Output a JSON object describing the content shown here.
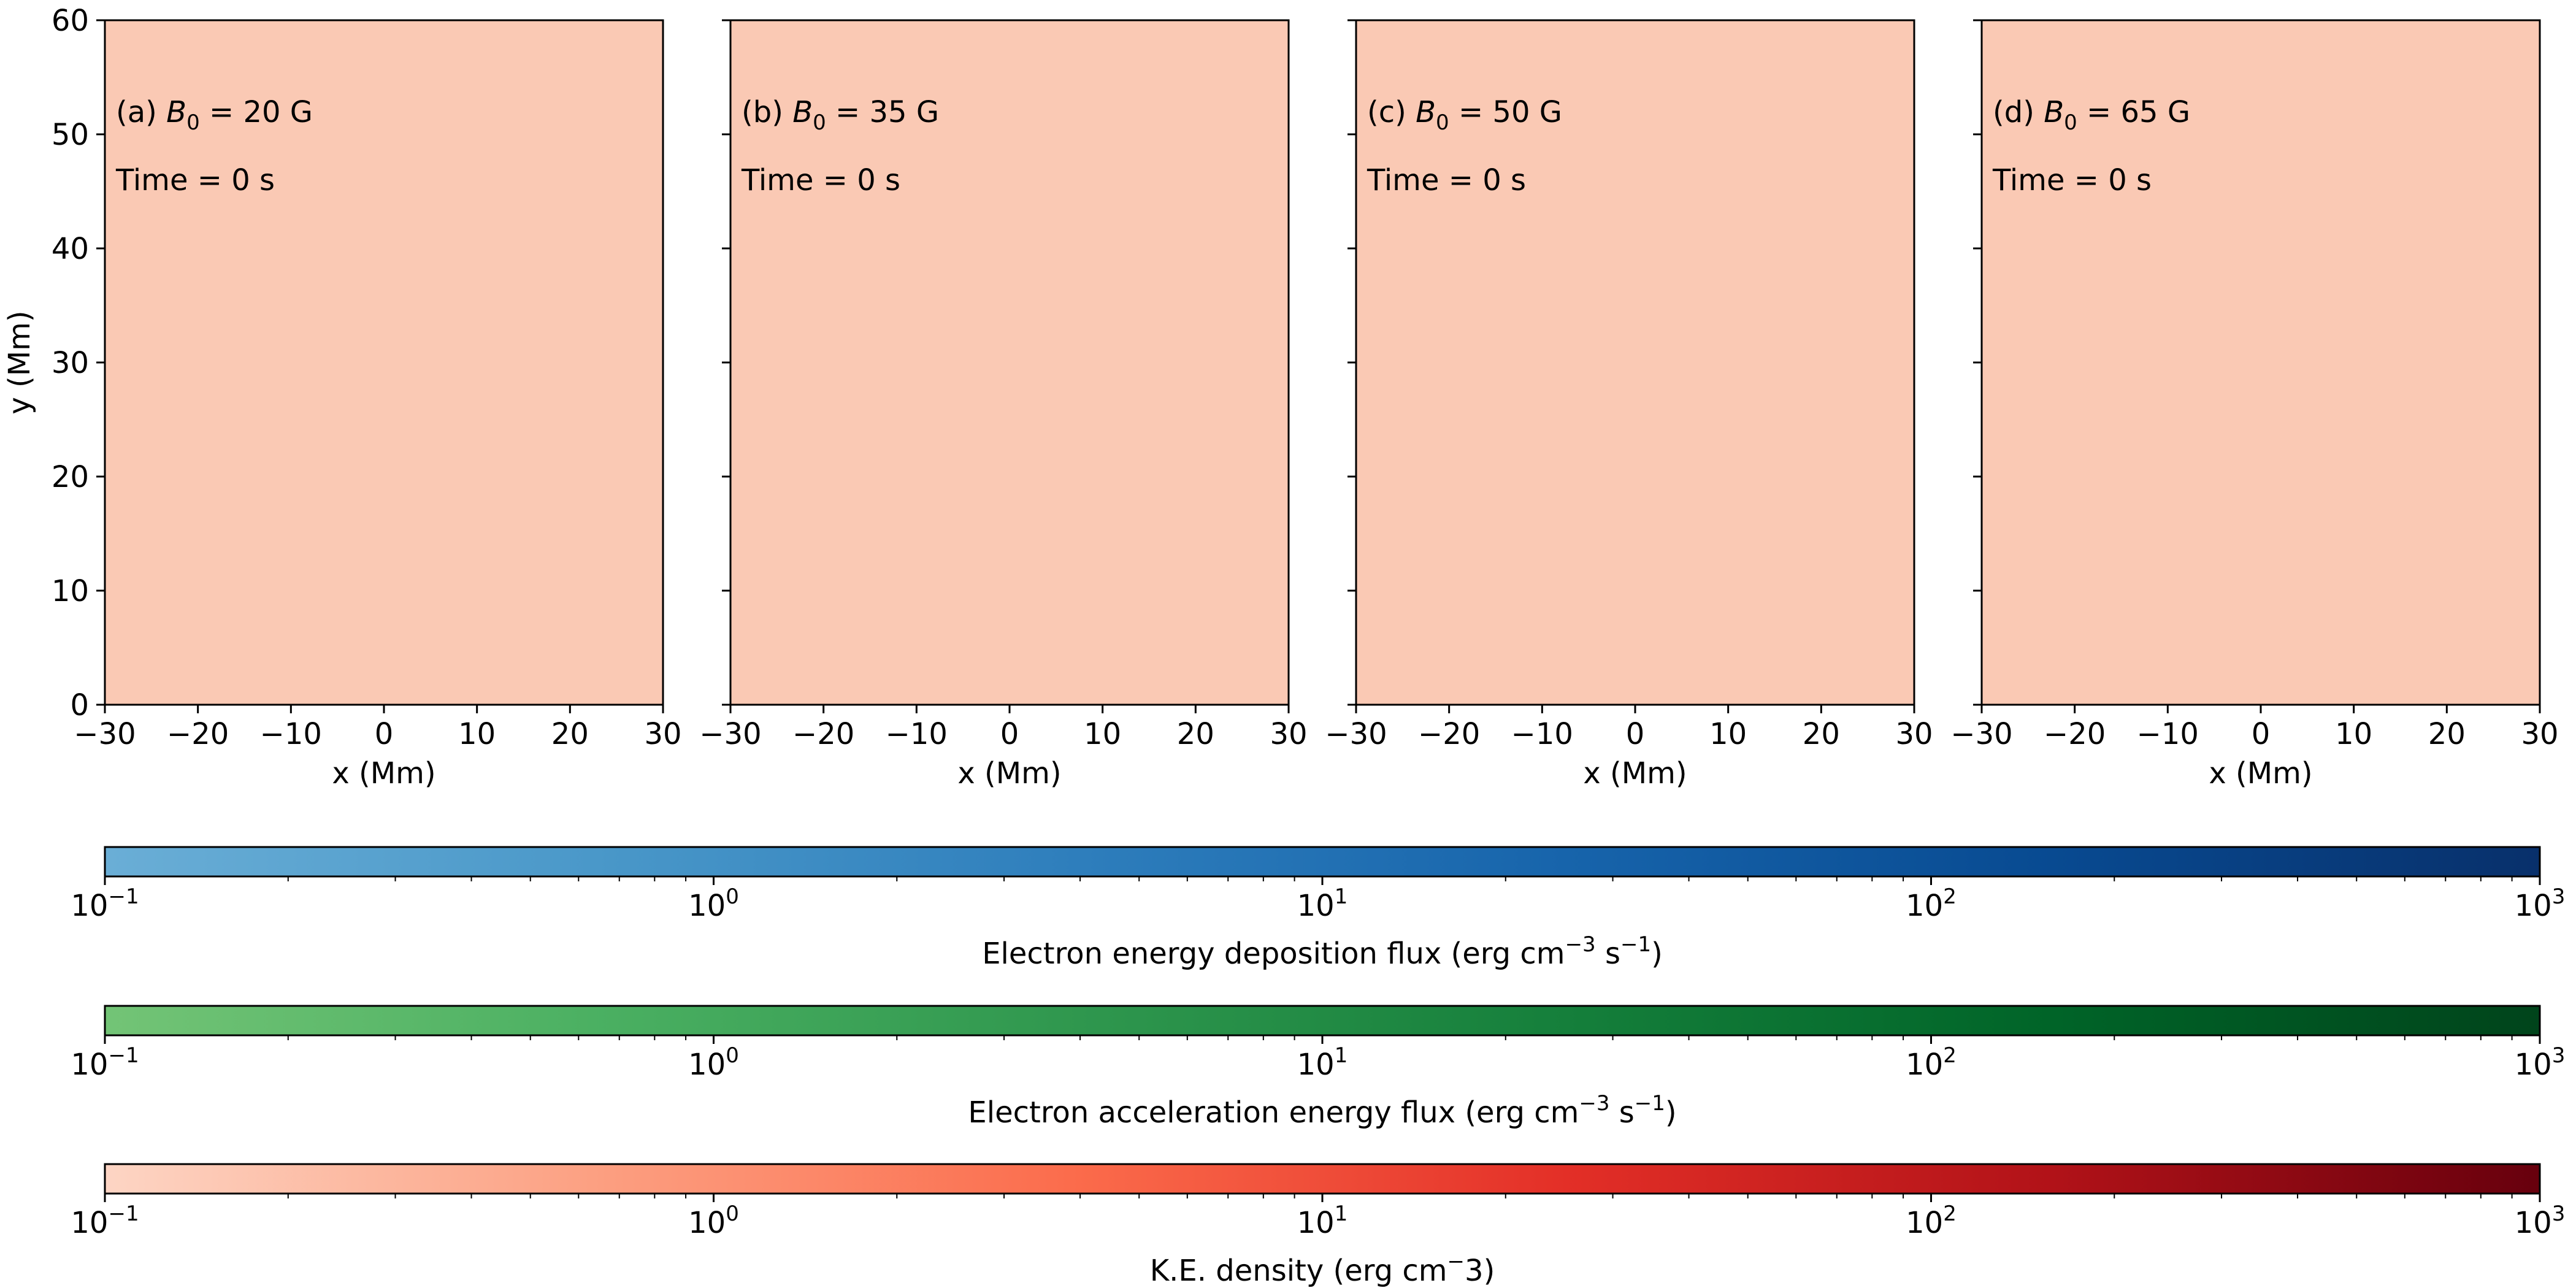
{
  "figure": {
    "colors": {
      "panel_fill": "#fac9b4",
      "axis": "#000000"
    }
  },
  "chart_data": [
    {
      "type": "heatmap",
      "panel": "a",
      "label_prefix": "(a) ",
      "label_symbol": "B",
      "label_subscript": "0",
      "label_value": " = 20 G",
      "time_label": "Time = 0 s",
      "x": [
        -30,
        -20,
        -10,
        0,
        10,
        20,
        30
      ],
      "y": [
        0,
        10,
        20,
        30,
        40,
        50,
        60
      ],
      "xlim": [
        -30,
        30
      ],
      "ylim": [
        0,
        60
      ],
      "xlabel": "x (Mm)",
      "ylabel": "y (Mm)",
      "values": "uniform K.E. density at minimum (10^-1)"
    },
    {
      "type": "heatmap",
      "panel": "b",
      "label_prefix": "(b) ",
      "label_symbol": "B",
      "label_subscript": "0",
      "label_value": " = 35 G",
      "time_label": "Time = 0 s",
      "xlim": [
        -30,
        30
      ],
      "ylim": [
        0,
        60
      ],
      "xlabel": "x (Mm)"
    },
    {
      "type": "heatmap",
      "panel": "c",
      "label_prefix": "(c) ",
      "label_symbol": "B",
      "label_subscript": "0",
      "label_value": " = 50 G",
      "time_label": "Time = 0 s",
      "xlim": [
        -30,
        30
      ],
      "ylim": [
        0,
        60
      ],
      "xlabel": "x (Mm)"
    },
    {
      "type": "heatmap",
      "panel": "d",
      "label_prefix": "(d) ",
      "label_symbol": "B",
      "label_subscript": "0",
      "label_value": " = 65 G",
      "time_label": "Time = 0 s",
      "xlim": [
        -30,
        30
      ],
      "ylim": [
        0,
        60
      ],
      "xlabel": "x (Mm)"
    }
  ],
  "axes": {
    "x_ticks": [
      -30,
      -20,
      -10,
      0,
      10,
      20,
      30
    ],
    "x_tick_labels": [
      "−30",
      "−20",
      "−10",
      "0",
      "10",
      "20",
      "30"
    ],
    "y_ticks": [
      0,
      10,
      20,
      30,
      40,
      50,
      60
    ],
    "y_tick_labels": [
      "0",
      "10",
      "20",
      "30",
      "40",
      "50",
      "60"
    ]
  },
  "colorbars": [
    {
      "name": "deposition",
      "label_pre": "Electron energy deposition flux (erg cm",
      "label_sup1": "−3",
      "label_mid": " s",
      "label_sup2": "−1",
      "label_post": ")",
      "scale": "log",
      "range": [
        0.1,
        1000
      ],
      "cmap_stops": [
        "#6aaed6",
        "#4a98c9",
        "#2e7ebc",
        "#1764ab",
        "#084a91",
        "#08306b"
      ],
      "tick_decades": [
        -1,
        0,
        1,
        2,
        3
      ]
    },
    {
      "name": "acceleration",
      "label_pre": "Electron acceleration energy flux (erg cm",
      "label_sup1": "−3",
      "label_mid": " s",
      "label_sup2": "−1",
      "label_post": ")",
      "scale": "log",
      "range": [
        0.1,
        1000
      ],
      "cmap_stops": [
        "#73c476",
        "#4bb062",
        "#2f974e",
        "#157f3b",
        "#006428",
        "#00441b"
      ],
      "tick_decades": [
        -1,
        0,
        1,
        2,
        3
      ]
    },
    {
      "name": "ke-density",
      "label_pre": "K.E. density (erg cm",
      "label_sup1": "−",
      "label_mid": "3)",
      "label_sup2": "",
      "label_post": "",
      "scale": "log",
      "range": [
        0.1,
        1000
      ],
      "cmap_stops": [
        "#fdd5c4",
        "#fca082",
        "#fb6b4b",
        "#e32f27",
        "#b11218",
        "#67000d"
      ],
      "tick_decades": [
        -1,
        0,
        1,
        2,
        3
      ]
    }
  ],
  "tick_base": "10"
}
